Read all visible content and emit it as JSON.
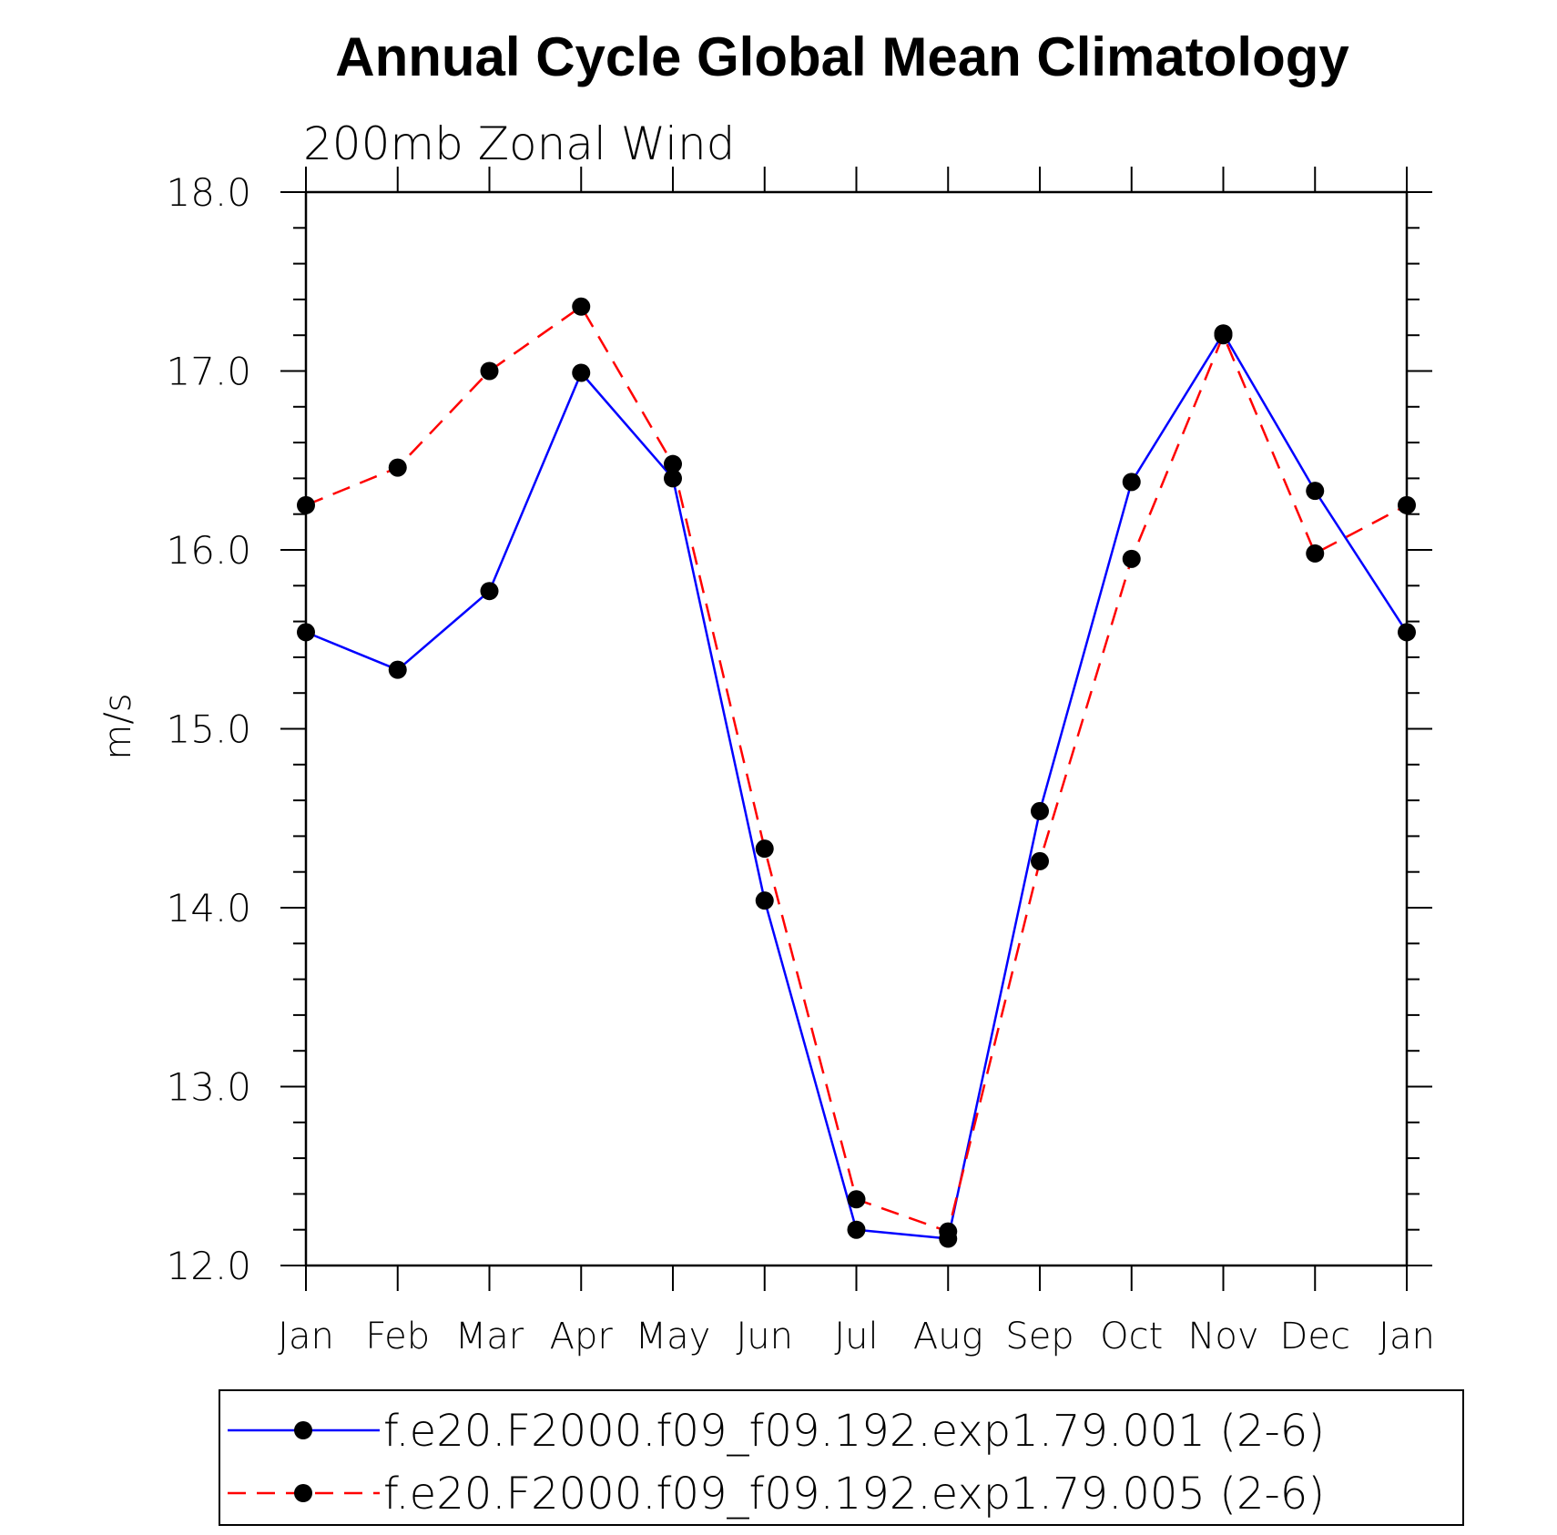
{
  "chart_data": {
    "type": "line",
    "title": "Annual Cycle Global Mean Climatology",
    "subtitle": "200mb Zonal Wind",
    "xlabel": "",
    "ylabel": "m/s",
    "categories": [
      "Jan",
      "Feb",
      "Mar",
      "Apr",
      "May",
      "Jun",
      "Jul",
      "Aug",
      "Sep",
      "Oct",
      "Nov",
      "Dec",
      "Jan"
    ],
    "ylim": [
      12.0,
      18.0
    ],
    "yticks": [
      "12.0",
      "13.0",
      "14.0",
      "15.0",
      "16.0",
      "17.0",
      "18.0"
    ],
    "grid": false,
    "legend_position": "bottom",
    "series": [
      {
        "name": "f.e20.F2000.f09_f09.192.exp1.79.001 (2-6)",
        "color": "#0000ff",
        "line_style": "solid",
        "marker": "filled-circle",
        "values": [
          15.54,
          15.33,
          15.77,
          16.99,
          16.4,
          14.04,
          12.2,
          12.15,
          14.54,
          16.38,
          17.21,
          16.33,
          15.54
        ]
      },
      {
        "name": "f.e20.F2000.f09_f09.192.exp1.79.005 (2-6)",
        "color": "#ff0000",
        "line_style": "dashed",
        "marker": "filled-circle",
        "values": [
          16.25,
          16.46,
          17.0,
          17.36,
          16.48,
          14.33,
          12.37,
          12.19,
          14.26,
          15.95,
          17.2,
          15.98,
          16.25
        ]
      }
    ]
  }
}
